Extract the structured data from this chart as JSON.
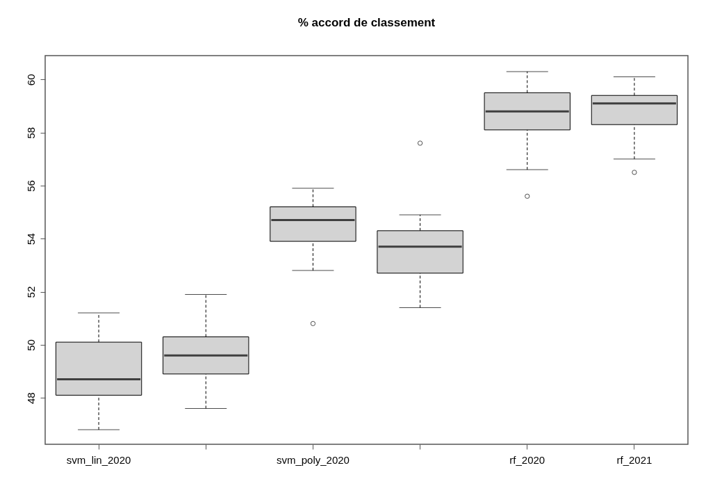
{
  "chart_data": {
    "type": "box",
    "title": "% accord de classement",
    "categories": [
      "svm_lin_2020",
      null,
      "svm_poly_2020",
      null,
      "rf_2020",
      "rf_2021"
    ],
    "boxes": [
      {
        "low": 46.8,
        "q1": 48.1,
        "median": 48.7,
        "q3": 50.1,
        "high": 51.2
      },
      {
        "low": 47.6,
        "q1": 48.9,
        "median": 49.6,
        "q3": 50.3,
        "high": 51.9
      },
      {
        "low": 52.8,
        "q1": 53.9,
        "median": 54.7,
        "q3": 55.2,
        "high": 55.9,
        "outliers": [
          50.8
        ]
      },
      {
        "low": 51.4,
        "q1": 52.7,
        "median": 53.7,
        "q3": 54.3,
        "high": 54.9,
        "outliers": [
          57.6
        ]
      },
      {
        "low": 56.6,
        "q1": 58.1,
        "median": 58.8,
        "q3": 59.5,
        "high": 60.3,
        "outliers": [
          55.6
        ]
      },
      {
        "low": 57.0,
        "q1": 58.3,
        "median": 59.1,
        "q3": 59.4,
        "high": 60.1,
        "outliers": [
          56.5
        ]
      }
    ],
    "ylim": [
      46.25,
      60.9
    ],
    "yticks": [
      48,
      50,
      52,
      54,
      56,
      58,
      60
    ]
  }
}
